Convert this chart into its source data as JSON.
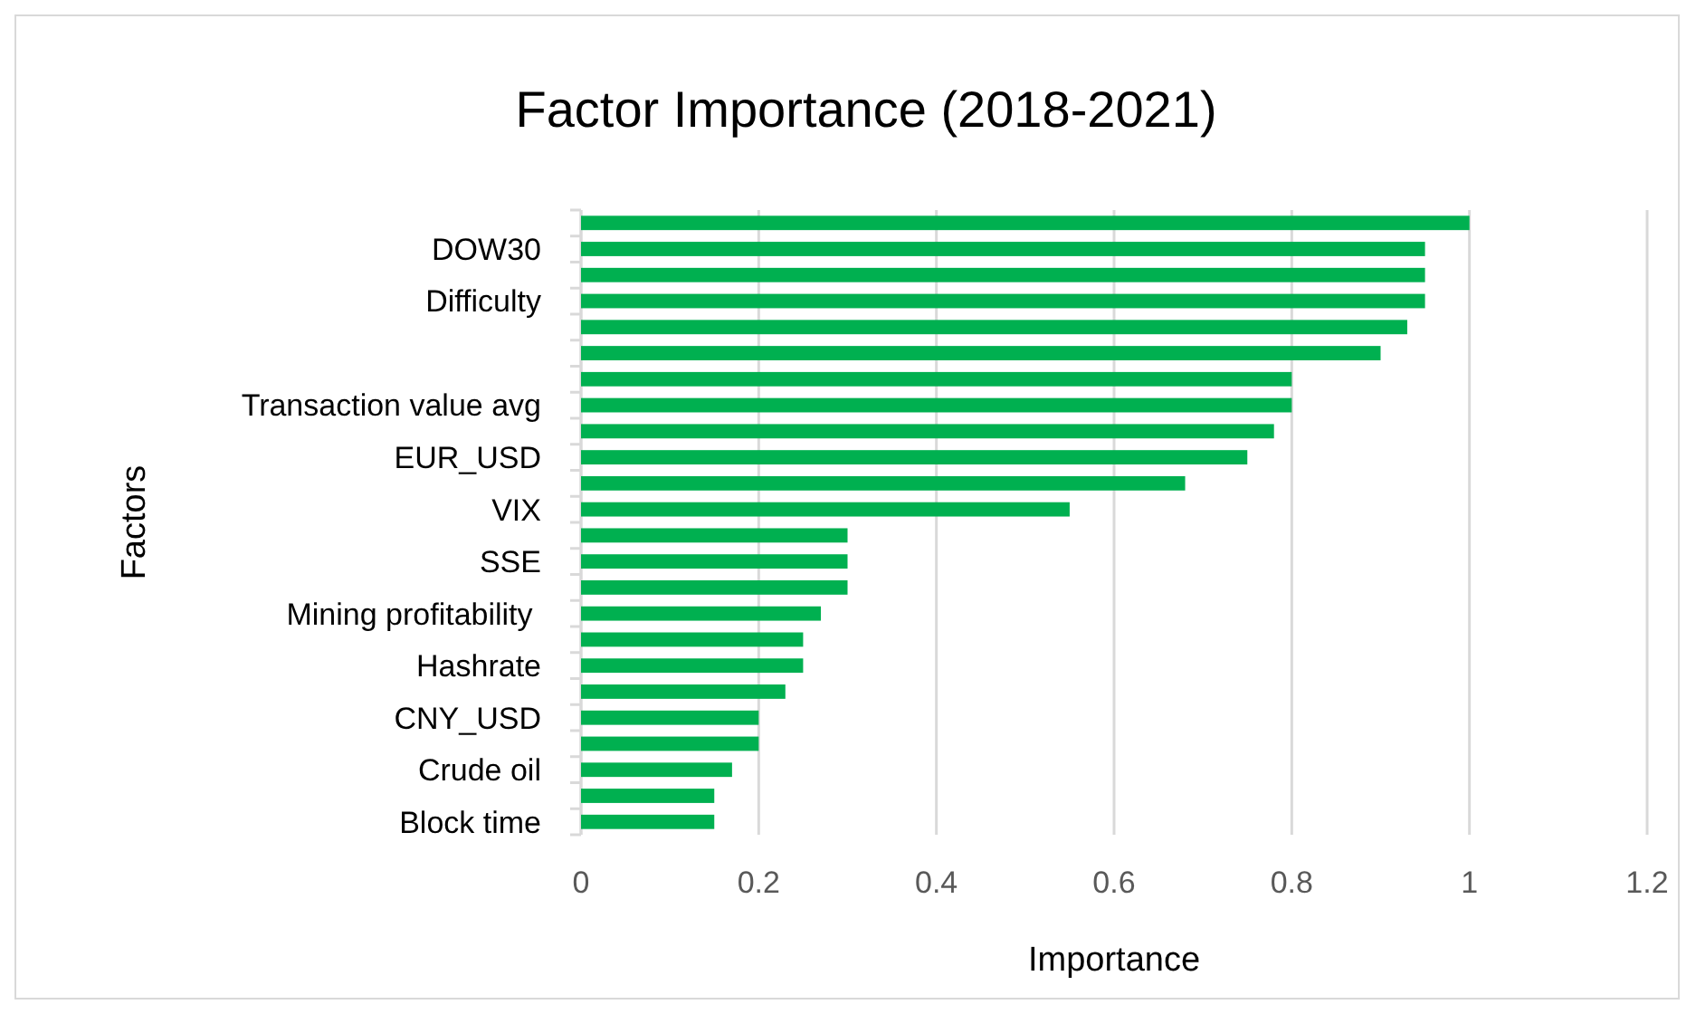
{
  "chart_data": {
    "type": "bar",
    "orientation": "horizontal",
    "title": "Factor Importance (2018-2021)",
    "xlabel": "Importance",
    "ylabel": "Factors",
    "categories": [
      null,
      "DOW30",
      null,
      "Difficulty",
      null,
      null,
      null,
      "Transaction value avg",
      null,
      "EUR_USD",
      null,
      "VIX",
      null,
      "SSE",
      null,
      "Mining profitability ",
      null,
      "Hashrate",
      null,
      "CNY_USD",
      null,
      "Crude oil",
      null,
      "Block time"
    ],
    "values": [
      1.0,
      0.95,
      0.95,
      0.95,
      0.93,
      0.9,
      0.8,
      0.8,
      0.78,
      0.75,
      0.68,
      0.55,
      0.3,
      0.3,
      0.3,
      0.27,
      0.25,
      0.25,
      0.23,
      0.2,
      0.2,
      0.17,
      0.15,
      0.15
    ],
    "color": "#00b050",
    "xlim": [
      0,
      1.2
    ],
    "xticks": [
      0,
      0.2,
      0.4,
      0.6,
      0.8,
      1,
      1.2
    ],
    "grid": "x"
  }
}
